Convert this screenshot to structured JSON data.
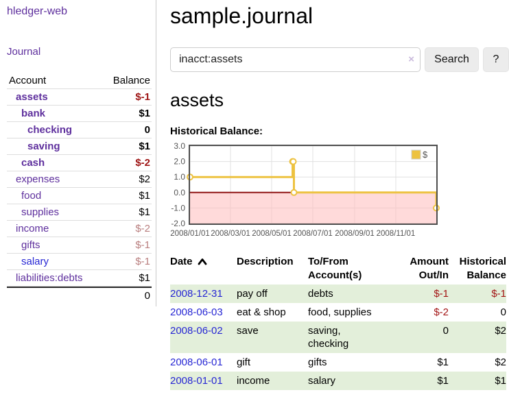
{
  "app": {
    "brand": "hledger-web",
    "nav_journal": "Journal"
  },
  "sidebar": {
    "table_headers": {
      "account": "Account",
      "balance": "Balance"
    },
    "accounts": [
      {
        "name": "assets",
        "balance": "$-1"
      },
      {
        "name": "bank",
        "balance": "$1"
      },
      {
        "name": "checking",
        "balance": "0"
      },
      {
        "name": "saving",
        "balance": "$1"
      },
      {
        "name": "cash",
        "balance": "$-2"
      },
      {
        "name": "expenses",
        "balance": "$2"
      },
      {
        "name": "food",
        "balance": "$1"
      },
      {
        "name": "supplies",
        "balance": "$1"
      },
      {
        "name": "income",
        "balance": "$-2"
      },
      {
        "name": "gifts",
        "balance": "$-1"
      },
      {
        "name": "salary",
        "balance": "$-1"
      },
      {
        "name": "liabilities:debts",
        "balance": "$1"
      }
    ],
    "total": "0"
  },
  "header": {
    "title": "sample.journal"
  },
  "search": {
    "value": "inacct:assets",
    "clear_icon": "×",
    "button_label": "Search",
    "help_label": "?"
  },
  "account_page": {
    "title": "assets",
    "chart_label": "Historical Balance:"
  },
  "chart_data": {
    "type": "line",
    "steps": true,
    "series": [
      {
        "name": "$",
        "color": "#edc240",
        "points": [
          {
            "x": "2008-01-01",
            "y": 1
          },
          {
            "x": "2008-06-01",
            "y": 2
          },
          {
            "x": "2008-06-02",
            "y": 2
          },
          {
            "x": "2008-06-03",
            "y": 0
          },
          {
            "x": "2008-12-31",
            "y": -1
          }
        ]
      }
    ],
    "xlim": [
      "2008-01-01",
      "2008-12-31"
    ],
    "ylim": [
      -2,
      3
    ],
    "xticks": [
      {
        "x": "2008-01-01",
        "label": "2008/01/01"
      },
      {
        "x": "2008-03-01",
        "label": "2008/03/01"
      },
      {
        "x": "2008-05-01",
        "label": "2008/05/01"
      },
      {
        "x": "2008-07-01",
        "label": "2008/07/01"
      },
      {
        "x": "2008-09-01",
        "label": "2008/09/01"
      },
      {
        "x": "2008-11-01",
        "label": "2008/11/01"
      }
    ],
    "yticks": [
      {
        "v": 3,
        "label": "3.0"
      },
      {
        "v": 2,
        "label": "2.0"
      },
      {
        "v": 1,
        "label": "1.0"
      },
      {
        "v": 0,
        "label": "0.0"
      },
      {
        "v": -1,
        "label": "-1.0"
      },
      {
        "v": -2,
        "label": "-2.0"
      }
    ],
    "legend_position": "top-right",
    "grid": true,
    "negative_region_color": "rgba(255,187,187,0.55)",
    "zero_line_color": "#8f1414"
  },
  "register_table": {
    "headers": {
      "date": "Date",
      "description": "Description",
      "tofrom_line1": "To/From",
      "tofrom_line2": "Account(s)",
      "amount_line1": "Amount",
      "amount_line2": "Out/In",
      "balance_line1": "Historical",
      "balance_line2": "Balance"
    },
    "rows": [
      {
        "date": "2008-12-31",
        "description": "pay off",
        "tofrom": "debts",
        "amount": "$-1",
        "balance": "$-1"
      },
      {
        "date": "2008-06-03",
        "description": "eat & shop",
        "tofrom": "food, supplies",
        "amount": "$-2",
        "balance": "0"
      },
      {
        "date": "2008-06-02",
        "description": "save",
        "tofrom": "saving,\nchecking",
        "amount": "0",
        "balance": "$2"
      },
      {
        "date": "2008-06-01",
        "description": "gift",
        "tofrom": "gifts",
        "amount": "$1",
        "balance": "$2"
      },
      {
        "date": "2008-01-01",
        "description": "income",
        "tofrom": "salary",
        "amount": "$1",
        "balance": "$1"
      }
    ]
  },
  "colors": {
    "accent_purple": "#5e2f9d",
    "link_blue": "#2727d4",
    "negative_strong": "#9e1414",
    "negative_soft": "#b97f7f",
    "stripe_green": "#e3efda",
    "chart_line_gold": "#edc240",
    "negative_region_pink": "#ffdddd",
    "zero_line_red": "#8f1414"
  }
}
